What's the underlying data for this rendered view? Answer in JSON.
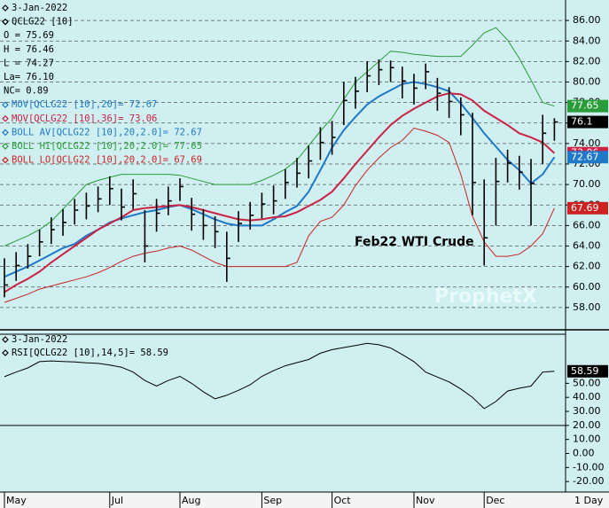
{
  "chart_data": [
    {
      "type": "ohlc",
      "date": "3-Jan-2022",
      "symbol": "QCLG22 [10]",
      "stats": [
        "O = 75.69",
        "H = 76.46",
        "L = 74.27",
        "La= 76.10",
        "NC= 0.89"
      ],
      "legend_text": [
        {
          "text": "BOLL AV[QCLG22 [10],20,2.0]= 72.67",
          "color": "#1f78c8"
        }
      ],
      "annotation": "Feb22 WTI Crude",
      "watermark": "ProphetX",
      "interval_label": "1 Day",
      "categories": [
        "May",
        null,
        null,
        null,
        null,
        null,
        null,
        null,
        null,
        "Jul",
        null,
        null,
        null,
        null,
        null,
        "Aug",
        null,
        null,
        null,
        null,
        null,
        null,
        "Sep",
        null,
        null,
        null,
        null,
        null,
        "Oct",
        null,
        null,
        null,
        null,
        null,
        null,
        "Nov",
        null,
        null,
        null,
        null,
        null,
        "Dec",
        null,
        null,
        null,
        null,
        null,
        null
      ],
      "high": [
        62.8,
        63.4,
        64.2,
        65.6,
        66.8,
        67.6,
        68.6,
        69.2,
        69.8,
        70.8,
        69.6,
        70.5,
        67.5,
        68.6,
        69.8,
        70.6,
        68.7,
        67.6,
        66.9,
        65.4,
        67.4,
        68.3,
        69.2,
        69.9,
        71.5,
        72.6,
        73.8,
        75.6,
        76.2,
        80.0,
        80.5,
        82.0,
        82.2,
        82.1,
        81.5,
        80.8,
        81.8,
        80.4,
        79.5,
        78.5,
        77.0,
        70.5,
        72.6,
        73.4,
        72.8,
        72.5,
        76.8,
        76.46
      ],
      "low": [
        59.0,
        60.6,
        61.8,
        63.0,
        64.2,
        65.0,
        66.1,
        66.6,
        67.3,
        68.0,
        66.5,
        67.6,
        62.4,
        65.4,
        67.0,
        68.4,
        65.5,
        64.6,
        63.8,
        60.5,
        64.4,
        65.6,
        66.7,
        67.1,
        68.6,
        69.7,
        70.6,
        72.4,
        72.9,
        75.8,
        77.4,
        79.0,
        79.7,
        80.0,
        78.4,
        77.8,
        79.3,
        77.2,
        76.5,
        74.8,
        67.0,
        62.1,
        66.0,
        70.2,
        69.5,
        66.0,
        72.0,
        74.27
      ],
      "close": [
        60.2,
        62.1,
        63.0,
        64.4,
        65.6,
        66.3,
        67.5,
        67.9,
        68.6,
        69.6,
        67.8,
        69.1,
        64.0,
        67.2,
        68.4,
        69.8,
        67.1,
        66.0,
        65.4,
        62.8,
        66.2,
        67.0,
        68.1,
        68.4,
        70.2,
        71.1,
        72.3,
        74.1,
        74.6,
        78.2,
        79.1,
        80.6,
        81.2,
        81.4,
        80.1,
        79.4,
        81.0,
        78.9,
        78.1,
        76.8,
        70.2,
        64.8,
        70.3,
        72.1,
        71.2,
        70.1,
        75.0,
        76.1
      ],
      "close_color": "#000000",
      "series": [
        {
          "name": "MOV[QCLG22 [10],20]= 72.67",
          "color": "#1f78c8",
          "width": 2,
          "values": [
            61.0,
            61.5,
            62.0,
            62.6,
            63.2,
            63.8,
            64.2,
            65.0,
            65.6,
            66.3,
            66.7,
            67.0,
            67.3,
            67.5,
            67.8,
            68.0,
            67.6,
            67.1,
            66.6,
            66.2,
            66.0,
            66.0,
            66.0,
            66.6,
            67.3,
            67.9,
            69.3,
            71.4,
            73.6,
            75.3,
            76.6,
            77.8,
            78.6,
            79.2,
            79.8,
            80.0,
            79.8,
            79.5,
            79.1,
            77.9,
            76.5,
            75.0,
            73.7,
            72.4,
            71.4,
            70.1,
            71.0,
            72.67
          ]
        },
        {
          "name": "MOV[QCLG22 [10],36]= 73.06",
          "color": "#cc2244",
          "width": 2,
          "values": [
            59.5,
            60.2,
            60.8,
            61.5,
            62.4,
            63.2,
            64.0,
            64.8,
            65.6,
            66.2,
            66.8,
            67.5,
            67.7,
            67.8,
            67.9,
            68.0,
            67.8,
            67.5,
            67.2,
            66.9,
            66.6,
            66.5,
            66.6,
            66.8,
            66.9,
            67.3,
            67.9,
            68.5,
            69.3,
            70.6,
            72.0,
            73.3,
            74.6,
            75.8,
            76.7,
            77.4,
            78.0,
            78.6,
            78.9,
            78.8,
            78.2,
            77.2,
            76.5,
            75.8,
            75.0,
            74.6,
            74.1,
            73.06
          ]
        },
        {
          "name": "BOLL HI[QCLG22 [10],20,2.0]= 77.65",
          "color": "#2a9d3a",
          "width": 1,
          "values": [
            64.0,
            64.5,
            65.0,
            65.6,
            66.4,
            67.6,
            68.8,
            70.0,
            70.4,
            70.7,
            71.0,
            71.0,
            71.0,
            71.0,
            71.0,
            70.9,
            70.6,
            70.3,
            70.0,
            70.0,
            70.0,
            70.0,
            70.4,
            70.9,
            71.5,
            72.4,
            73.8,
            75.2,
            76.5,
            78.3,
            80.0,
            81.0,
            82.0,
            83.0,
            82.9,
            82.7,
            82.6,
            82.5,
            82.5,
            82.5,
            83.6,
            84.8,
            85.3,
            84.1,
            82.3,
            80.2,
            78.0,
            77.65
          ]
        },
        {
          "name": "BOLL LO[QCLG22 [10],20,2.0]= 67.69",
          "color": "#cc2222",
          "width": 1,
          "values": [
            58.5,
            58.9,
            59.3,
            59.8,
            60.1,
            60.4,
            60.7,
            61.0,
            61.4,
            61.9,
            62.5,
            63.0,
            63.3,
            63.5,
            63.8,
            64.0,
            63.6,
            63.0,
            62.4,
            62.0,
            62.0,
            62.0,
            62.0,
            62.0,
            62.0,
            62.4,
            65.0,
            66.4,
            66.8,
            68.0,
            69.9,
            71.4,
            72.6,
            73.6,
            74.3,
            75.5,
            75.2,
            74.8,
            74.1,
            71.0,
            66.9,
            64.4,
            63.0,
            63.0,
            63.2,
            64.0,
            65.2,
            67.69
          ]
        }
      ],
      "ylim": [
        56,
        88
      ],
      "yticks": [
        {
          "value": 58,
          "label": "58.00"
        },
        {
          "value": 60,
          "label": "60.00"
        },
        {
          "value": 62,
          "label": "62.00"
        },
        {
          "value": 64,
          "label": "64.00"
        },
        {
          "value": 66,
          "label": "66.00"
        },
        {
          "value": 68,
          "label": "68.00"
        },
        {
          "value": 70,
          "label": "70.00"
        },
        {
          "value": 72,
          "label": "72.00"
        },
        {
          "value": 74,
          "label": "74.00"
        },
        {
          "value": 76,
          "label": "76.00"
        },
        {
          "value": 78,
          "label": "78.00"
        },
        {
          "value": 80,
          "label": "80.00"
        },
        {
          "value": 82,
          "label": "82.00"
        },
        {
          "value": 84,
          "label": "84.00"
        },
        {
          "value": 86,
          "label": "86.00"
        }
      ],
      "grid": true
    },
    {
      "type": "line",
      "date": "3-Jan-2022",
      "series": [
        {
          "name": "RSI[QCLG22 [10],14,5]= 58.59",
          "color": "#000000",
          "values": [
            54.7,
            58,
            61,
            65.5,
            66,
            65.6,
            65.2,
            64.6,
            64.2,
            63,
            61.5,
            58,
            52,
            48,
            52,
            55,
            50,
            44,
            39,
            41.5,
            45,
            49,
            55,
            59,
            62.5,
            64.8,
            67,
            71.5,
            74,
            75.5,
            77,
            78.5,
            77.5,
            75.2,
            70.5,
            65.5,
            58,
            54.5,
            51,
            46,
            40,
            32,
            37,
            44.5,
            46.5,
            48,
            58,
            58.59
          ]
        }
      ],
      "reference_line": 20,
      "ylim": [
        -27.5,
        85
      ],
      "yticks": [
        {
          "value": -20,
          "label": "-20.00"
        },
        {
          "value": -10,
          "label": "-10.00"
        },
        {
          "value": 0,
          "label": "0.00"
        },
        {
          "value": 10,
          "label": "10.00"
        },
        {
          "value": 20,
          "label": "20.00"
        },
        {
          "value": 30,
          "label": "30.00"
        },
        {
          "value": 40,
          "label": "40.00"
        },
        {
          "value": 50,
          "label": "50.00"
        }
      ]
    }
  ]
}
